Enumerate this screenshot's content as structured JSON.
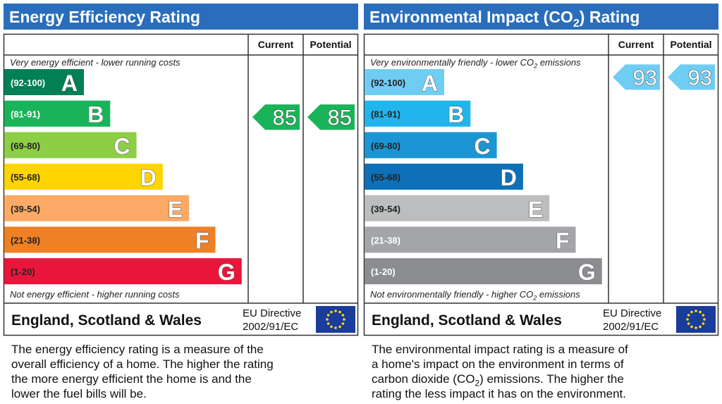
{
  "panels": [
    {
      "title": [
        "Energy Efficiency Rating"
      ],
      "col_current": "Current",
      "col_potential": "Potential",
      "top_note": [
        "Very energy efficient - lower running costs"
      ],
      "bottom_note": [
        "Not energy efficient - higher running costs"
      ],
      "bands": [
        {
          "range": "(92-100)",
          "letter": "A",
          "color": "#008054",
          "text_color": "#ffffff"
        },
        {
          "range": "(81-91)",
          "letter": "B",
          "color": "#19b459",
          "text_color": "#ffffff"
        },
        {
          "range": "(69-80)",
          "letter": "C",
          "color": "#8dce46",
          "text_color": "#222222"
        },
        {
          "range": "(55-68)",
          "letter": "D",
          "color": "#ffd500",
          "text_color": "#222222"
        },
        {
          "range": "(39-54)",
          "letter": "E",
          "color": "#fcaa65",
          "text_color": "#222222"
        },
        {
          "range": "(21-38)",
          "letter": "F",
          "color": "#ef8023",
          "text_color": "#222222"
        },
        {
          "range": "(1-20)",
          "letter": "G",
          "color": "#e9153b",
          "text_color": "#222222"
        }
      ],
      "current": 85,
      "potential": 85,
      "country": "England, Scotland & Wales",
      "directive": [
        "EU Directive",
        "2002/91/EC"
      ],
      "description": [
        [
          "The energy efficiency rating is a measure of the"
        ],
        [
          "overall efficiency of a home. The higher the rating"
        ],
        [
          "the more energy efficient the home is and the"
        ],
        [
          "lower the fuel bills will be."
        ]
      ]
    },
    {
      "title": [
        "Environmental Impact (CO",
        {
          "sub": "2"
        },
        ") Rating"
      ],
      "col_current": "Current",
      "col_potential": "Potential",
      "top_note": [
        "Very environmentally friendly - lower CO",
        {
          "sub": "2"
        },
        " emissions"
      ],
      "bottom_note": [
        "Not environmentally friendly - higher CO",
        {
          "sub": "2"
        },
        " emissions"
      ],
      "bands": [
        {
          "range": "(92-100)",
          "letter": "A",
          "color": "#6fcdf4",
          "text_color": "#222222"
        },
        {
          "range": "(81-91)",
          "letter": "B",
          "color": "#22b5ec",
          "text_color": "#222222"
        },
        {
          "range": "(69-80)",
          "letter": "C",
          "color": "#1b95d3",
          "text_color": "#222222"
        },
        {
          "range": "(55-68)",
          "letter": "D",
          "color": "#0d70b8",
          "text_color": "#222222"
        },
        {
          "range": "(39-54)",
          "letter": "E",
          "color": "#bbbdbf",
          "text_color": "#222222"
        },
        {
          "range": "(21-38)",
          "letter": "F",
          "color": "#a3a5a8",
          "text_color": "#ffffff"
        },
        {
          "range": "(1-20)",
          "letter": "G",
          "color": "#8b8d90",
          "text_color": "#ffffff"
        }
      ],
      "current": 93,
      "potential": 93,
      "country": "England, Scotland & Wales",
      "directive": [
        "EU Directive",
        "2002/91/EC"
      ],
      "description": [
        [
          "The environmental impact rating is a measure of"
        ],
        [
          "a home's impact on the environment in terms of"
        ],
        [
          "carbon dioxide (CO",
          {
            "sub": "2"
          },
          ") emissions. The higher the"
        ],
        [
          "rating the less impact it has on the environment."
        ]
      ]
    }
  ]
}
